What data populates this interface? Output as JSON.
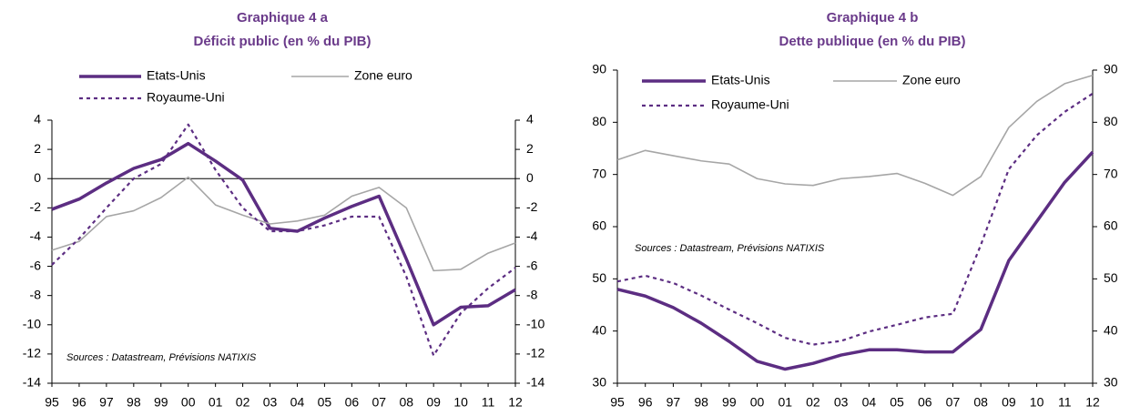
{
  "chart_data": [
    {
      "type": "line",
      "title": "Graphique 4 a",
      "subtitle": "Déficit public (en % du PIB)",
      "categories": [
        "95",
        "96",
        "97",
        "98",
        "99",
        "00",
        "01",
        "02",
        "03",
        "04",
        "05",
        "06",
        "07",
        "08",
        "09",
        "10",
        "11",
        "12"
      ],
      "series": [
        {
          "name": "Etats-Unis",
          "color": "#5c2d82",
          "style": "thick",
          "values": [
            -2.1,
            -1.4,
            -0.3,
            0.7,
            1.3,
            2.4,
            1.2,
            -0.1,
            -3.4,
            -3.6,
            -2.7,
            -1.9,
            -1.2,
            -5.5,
            -10,
            -8.8,
            -8.7,
            -7.6
          ]
        },
        {
          "name": "Zone euro",
          "color": "#a6a6a6",
          "style": "thin",
          "values": [
            -4.9,
            -4.3,
            -2.6,
            -2.2,
            -1.3,
            0.1,
            -1.8,
            -2.5,
            -3.1,
            -2.9,
            -2.5,
            -1.2,
            -0.6,
            -2.0,
            -6.3,
            -6.2,
            -5.1,
            -4.4
          ]
        },
        {
          "name": "Royaume-Uni",
          "color": "#5c2d82",
          "style": "dashed",
          "values": [
            -5.9,
            -4.1,
            -2.0,
            0.0,
            1.0,
            3.7,
            0.6,
            -2.0,
            -3.6,
            -3.6,
            -3.2,
            -2.6,
            -2.6,
            -6.7,
            -12.1,
            -9.2,
            -7.5,
            -6.1
          ]
        }
      ],
      "ylim": [
        -14,
        4
      ],
      "yticks": [
        -14,
        -12,
        -10,
        -8,
        -6,
        -4,
        -2,
        0,
        2,
        4
      ],
      "y2lim": [
        -14,
        4
      ],
      "y2ticks": [
        -14,
        -12,
        -10,
        -8,
        -6,
        -4,
        -2,
        0,
        2,
        4
      ],
      "hline": 0,
      "source": "Sources : Datastream, Prévisions NATIXIS"
    },
    {
      "type": "line",
      "title": "Graphique 4 b",
      "subtitle": "Dette publique (en % du PIB)",
      "categories": [
        "95",
        "96",
        "97",
        "98",
        "99",
        "00",
        "01",
        "02",
        "03",
        "04",
        "05",
        "06",
        "07",
        "08",
        "09",
        "10",
        "11",
        "12"
      ],
      "series": [
        {
          "name": "Etats-Unis",
          "color": "#5c2d82",
          "style": "thick",
          "values": [
            48,
            46.7,
            44.5,
            41.5,
            38,
            34.2,
            32.7,
            33.8,
            35.4,
            36.4,
            36.4,
            36,
            36,
            40.3,
            53.5,
            61,
            68.5,
            74.3
          ]
        },
        {
          "name": "Zone euro",
          "color": "#a6a6a6",
          "style": "thin",
          "values": [
            72.8,
            74.6,
            73.6,
            72.6,
            72,
            69.2,
            68.2,
            67.9,
            69.2,
            69.6,
            70.2,
            68.3,
            66,
            69.6,
            79,
            84,
            87.4,
            89
          ]
        },
        {
          "name": "Royaume-Uni",
          "color": "#5c2d82",
          "style": "dashed",
          "values": [
            49.5,
            50.6,
            49.2,
            46.8,
            44.1,
            41.5,
            38.7,
            37.4,
            38.1,
            39.9,
            41.2,
            42.6,
            43.3,
            56.5,
            71,
            77.5,
            82,
            85.5
          ]
        }
      ],
      "ylim": [
        30,
        90
      ],
      "yticks": [
        30,
        40,
        50,
        60,
        70,
        80,
        90
      ],
      "y2lim": [
        30,
        90
      ],
      "y2ticks": [
        30,
        40,
        50,
        60,
        70,
        80,
        90
      ],
      "source": "Sources : Datastream, Prévisions NATIXIS"
    }
  ]
}
